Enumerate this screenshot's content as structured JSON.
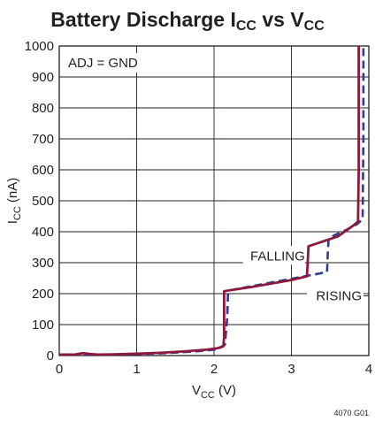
{
  "chart_data": {
    "type": "line",
    "title": "Battery Discharge",
    "title_parts": [
      {
        "text": "Battery Discharge I",
        "sub": false
      },
      {
        "text": "CC",
        "sub": true
      },
      {
        "text": " vs V",
        "sub": false
      },
      {
        "text": "CC",
        "sub": true
      }
    ],
    "xlabel_parts": [
      {
        "text": "V",
        "sub": false
      },
      {
        "text": "CC",
        "sub": true
      },
      {
        "text": " (V)",
        "sub": false
      }
    ],
    "ylabel_parts": [
      {
        "text": "I",
        "sub": false
      },
      {
        "text": "CC",
        "sub": true
      },
      {
        "text": " (nA)",
        "sub": false
      }
    ],
    "xlim": [
      0,
      4
    ],
    "ylim": [
      0,
      1000
    ],
    "xticks": [
      0,
      1,
      2,
      3,
      4
    ],
    "yticks": [
      0,
      100,
      200,
      300,
      400,
      500,
      600,
      700,
      800,
      900,
      1000
    ],
    "grid": true,
    "annotation": "ADJ = GND",
    "figure_id": "4070 G01",
    "series": [
      {
        "name": "FALLING",
        "color": "#8b1a3e",
        "style": "solid",
        "x": [
          0,
          0.1,
          0.2,
          0.3,
          0.4,
          0.5,
          0.7,
          1.0,
          1.3,
          1.6,
          1.9,
          2.05,
          2.12,
          2.13,
          2.13,
          2.5,
          3.0,
          3.2,
          3.21,
          3.22,
          3.4,
          3.6,
          3.8,
          3.86,
          3.87,
          3.87
        ],
        "y": [
          3,
          3,
          3,
          8,
          5,
          3,
          4,
          6,
          9,
          13,
          19,
          24,
          30,
          60,
          208,
          222,
          244,
          256,
          300,
          353,
          368,
          385,
          420,
          433,
          600,
          1000
        ]
      },
      {
        "name": "RISING",
        "color": "#2b3f8c",
        "style": "dashed",
        "x": [
          0,
          0.3,
          0.6,
          1.0,
          1.4,
          1.8,
          2.05,
          2.14,
          2.17,
          2.18,
          2.19,
          2.5,
          3.0,
          3.3,
          3.46,
          3.47,
          3.48,
          3.55,
          3.7,
          3.85,
          3.92,
          3.93,
          3.93
        ],
        "y": [
          2,
          4,
          2,
          5,
          8,
          14,
          20,
          35,
          120,
          200,
          210,
          225,
          248,
          262,
          270,
          330,
          375,
          388,
          405,
          425,
          440,
          700,
          1000
        ]
      }
    ]
  }
}
